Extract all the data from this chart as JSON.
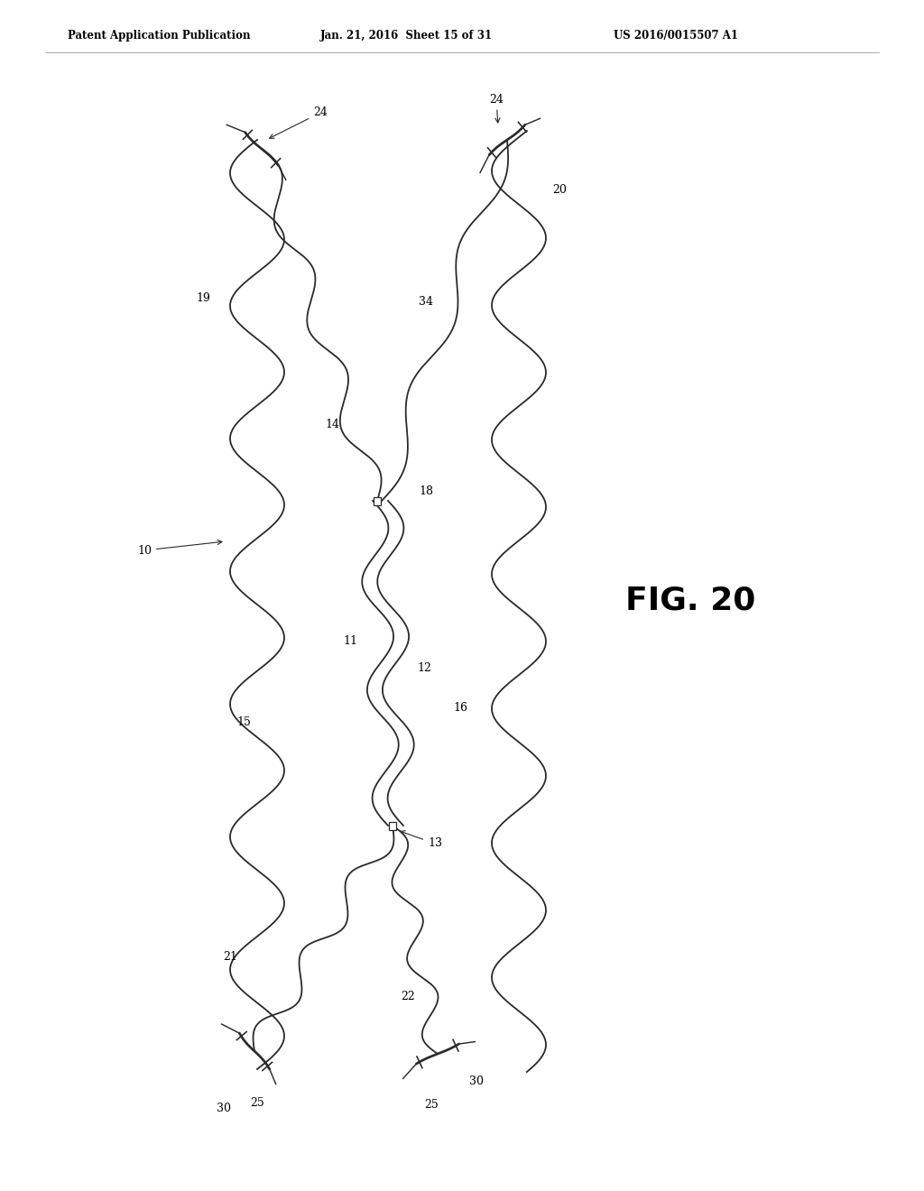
{
  "header_left": "Patent Application Publication",
  "header_mid": "Jan. 21, 2016  Sheet 15 of 31",
  "header_right": "US 2016/0015507 A1",
  "fig_caption": "FIG. 20",
  "bg_color": "#ffffff",
  "line_color": "#2a2a2a",
  "line_width": 1.3
}
